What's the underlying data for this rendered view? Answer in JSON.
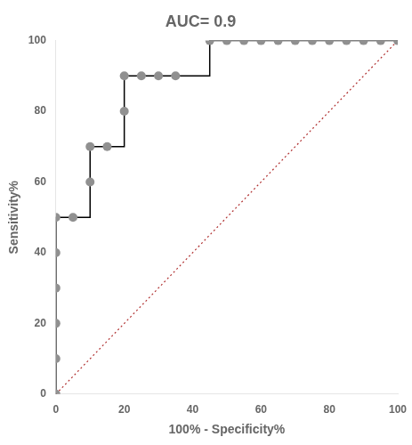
{
  "chart_data": {
    "type": "line",
    "title": "AUC= 0.9",
    "xlabel": "100% - Specificity%",
    "ylabel": "Sensitivity%",
    "xlim": [
      0,
      100
    ],
    "ylim": [
      0,
      100
    ],
    "xticks": [
      0,
      20,
      40,
      60,
      80,
      100
    ],
    "yticks": [
      0,
      20,
      40,
      60,
      80,
      100
    ],
    "grid": false,
    "series": [
      {
        "type": "line",
        "line_style": "dotted",
        "color": "#b03030",
        "x": [
          0,
          100
        ],
        "values": [
          0,
          100
        ]
      },
      {
        "type": "line",
        "line_style": "step",
        "color": "#000000",
        "x": [
          0,
          0,
          0,
          0,
          0,
          0,
          5,
          5,
          10,
          10,
          15,
          20,
          20,
          25,
          30,
          35,
          45,
          45,
          50,
          55,
          60,
          65,
          70,
          75,
          80,
          85,
          90,
          95,
          100
        ],
        "values": [
          0,
          50,
          50,
          50,
          50,
          50,
          50,
          50,
          60,
          70,
          70,
          80,
          90,
          90,
          90,
          90,
          90,
          100,
          100,
          100,
          100,
          100,
          100,
          100,
          100,
          100,
          100,
          100,
          100
        ]
      },
      {
        "type": "scatter",
        "marker": "circle",
        "color": "#909090",
        "x": [
          0,
          0,
          0,
          0,
          0,
          0,
          5,
          10,
          10,
          15,
          20,
          20,
          25,
          30,
          35,
          45,
          50,
          55,
          60,
          65,
          70,
          75,
          80,
          85,
          90,
          95,
          100
        ],
        "values": [
          0,
          10,
          20,
          30,
          40,
          50,
          50,
          60,
          70,
          70,
          80,
          90,
          90,
          90,
          90,
          100,
          100,
          100,
          100,
          100,
          100,
          100,
          100,
          100,
          100,
          100,
          100
        ]
      }
    ]
  }
}
